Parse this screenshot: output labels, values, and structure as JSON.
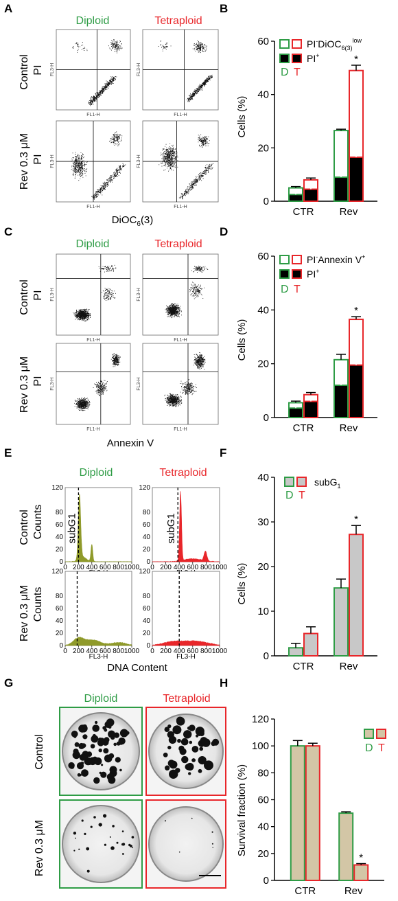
{
  "colors": {
    "diploid": "#2e9c45",
    "tetraploid": "#e8262a",
    "olive": "#8f9a2a",
    "red_fill": "#e8262a",
    "gray": "#c8c8c8",
    "tan": "#d3c6a6"
  },
  "panel_letters": {
    "A": "A",
    "B": "B",
    "C": "C",
    "D": "D",
    "E": "E",
    "F": "F",
    "G": "G",
    "H": "H"
  },
  "headers": {
    "diploid": "Diploid",
    "tetraploid": "Tetraploid"
  },
  "rows": {
    "control": "Control",
    "rev": "Rev 0.3 μM"
  },
  "flow": {
    "pi": "PI",
    "fl1h": "FL1-H",
    "fl3h": "FL3-H",
    "a_xlabel": "DiOC6(3)",
    "c_xlabel": "Annexin V"
  },
  "hist": {
    "ylabel": "Counts",
    "subg1": "subG1",
    "xlabel": "DNA Content",
    "xticks": [
      "0",
      "200",
      "400",
      "600",
      "800",
      "1000"
    ],
    "yticks": [
      "0",
      "20",
      "40",
      "60",
      "80",
      "120"
    ]
  },
  "group_legend": {
    "d": "D",
    "t": "T"
  },
  "chart_data": [
    {
      "panel": "B",
      "type": "bar",
      "ylabel": "Cells (%)",
      "ylim": [
        0,
        60
      ],
      "yticks": [
        0,
        20,
        40,
        60
      ],
      "categories": [
        "CTR",
        "Rev"
      ],
      "legend": {
        "top": "PI-DiOC6(3)low",
        "bottom": "PI+"
      },
      "series": [
        {
          "name": "PI-DiOC6(3)low",
          "group": "D",
          "total": [
            5,
            26.5
          ],
          "total_err": [
            0.5,
            0.5
          ],
          "stack_bottom": [
            2.5,
            9
          ],
          "stack_bottom_err": [
            0.5,
            1
          ]
        },
        {
          "name": "PI-DiOC6(3)low",
          "group": "T",
          "total": [
            8,
            49
          ],
          "total_err": [
            0.7,
            2
          ],
          "stack_bottom": [
            4.5,
            16.5
          ],
          "stack_bottom_err": [
            0.7,
            1
          ]
        }
      ],
      "annotation": "*"
    },
    {
      "panel": "D",
      "type": "bar",
      "ylabel": "Cells (%)",
      "ylim": [
        0,
        60
      ],
      "yticks": [
        0,
        20,
        40,
        60
      ],
      "categories": [
        "CTR",
        "Rev"
      ],
      "legend": {
        "top": "PI-Annexin V+",
        "bottom": "PI+"
      },
      "series": [
        {
          "name": "PI-Annexin V+",
          "group": "D",
          "total": [
            5.5,
            21.5
          ],
          "total_err": [
            0.6,
            2
          ],
          "stack_bottom": [
            3.5,
            12
          ],
          "stack_bottom_err": [
            0.8,
            2
          ]
        },
        {
          "name": "PI-Annexin V+",
          "group": "T",
          "total": [
            8.5,
            36.5
          ],
          "total_err": [
            0.8,
            1
          ],
          "stack_bottom": [
            6,
            19.5
          ],
          "stack_bottom_err": [
            0.8,
            2
          ]
        }
      ],
      "annotation": "*"
    },
    {
      "panel": "F",
      "type": "bar",
      "ylabel": "Cells (%)",
      "ylim": [
        0,
        40
      ],
      "yticks": [
        0,
        10,
        20,
        30,
        40
      ],
      "categories": [
        "CTR",
        "Rev"
      ],
      "legend": {
        "label": "subG1"
      },
      "series": [
        {
          "name": "subG1",
          "group": "D",
          "values": [
            1.8,
            15.2
          ],
          "err": [
            1,
            2
          ]
        },
        {
          "name": "subG1",
          "group": "T",
          "values": [
            5,
            27.2
          ],
          "err": [
            1.5,
            2
          ]
        }
      ],
      "annotation": "*"
    },
    {
      "panel": "H",
      "type": "bar",
      "ylabel": "Survival fraction (%)",
      "ylim": [
        0,
        120
      ],
      "yticks": [
        0,
        20,
        40,
        60,
        80,
        100,
        120
      ],
      "categories": [
        "CTR",
        "Rev"
      ],
      "series": [
        {
          "name": "",
          "group": "D",
          "values": [
            100,
            50
          ],
          "err": [
            4,
            1
          ]
        },
        {
          "name": "",
          "group": "T",
          "values": [
            100,
            11.5
          ],
          "err": [
            2,
            1
          ]
        }
      ],
      "annotation": "*"
    }
  ]
}
